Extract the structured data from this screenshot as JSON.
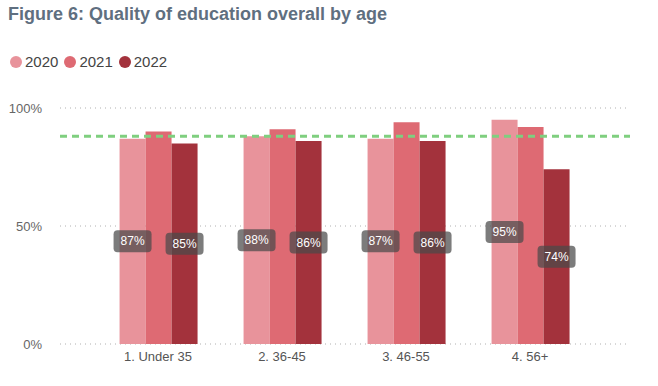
{
  "chart_data": {
    "type": "bar",
    "title": "Figure 6: Quality of education overall by age",
    "categories": [
      "1. Under 35",
      "2. 36-45",
      "3. 46-55",
      "4. 56+"
    ],
    "series": [
      {
        "name": "2020",
        "color": "#e8939b",
        "values": [
          87,
          88,
          87,
          95
        ],
        "value_labels": [
          "87%",
          "88%",
          "87%",
          "95%"
        ],
        "data_labels": true
      },
      {
        "name": "2021",
        "color": "#de6a73",
        "values": [
          90,
          91,
          94,
          92
        ],
        "data_labels": false
      },
      {
        "name": "2022",
        "color": "#a3323c",
        "values": [
          85,
          86,
          86,
          74
        ],
        "value_labels": [
          "85%",
          "86%",
          "86%",
          "74%"
        ],
        "data_labels": true
      }
    ],
    "ylim": [
      0,
      100
    ],
    "yticks": [
      {
        "value": 0,
        "label": "0%"
      },
      {
        "value": 50,
        "label": "50%"
      },
      {
        "value": 100,
        "label": "100%"
      }
    ],
    "grid": true,
    "legend": "top left",
    "reference_line": {
      "value": 88,
      "color": "#7fcf7f",
      "line_style": "dashed"
    }
  }
}
